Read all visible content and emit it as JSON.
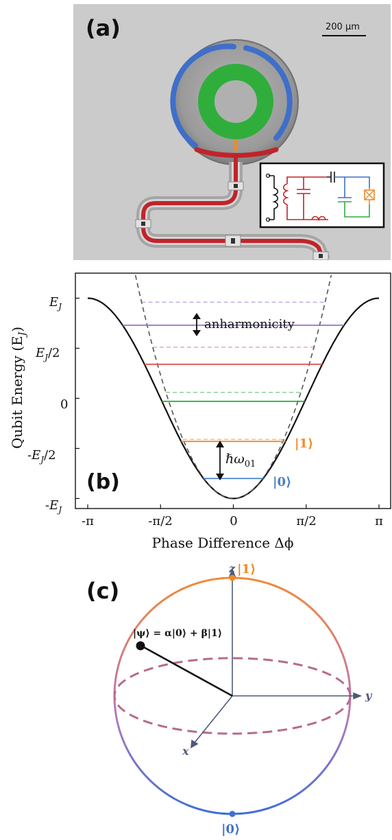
{
  "panel_a": {
    "label": "(a)",
    "scale_bar": "200 µm",
    "colors": {
      "background": "#c9c9c9",
      "red": "#c0242a",
      "blue": "#3f6fc9",
      "green": "#2fae3c",
      "orange": "#f08a24"
    }
  },
  "panel_b": {
    "label": "(b)",
    "ylabel": "Qubit Energy (E",
    "ylabel_sub": "J",
    "ylabel_end": ")",
    "xlabel": "Phase Difference Δϕ",
    "y_ticks": [
      "E",
      "E/2",
      "0",
      "-E/2",
      "-E"
    ],
    "x_ticks": [
      "-π",
      "-π/2",
      "0",
      "π/2",
      "π"
    ],
    "anharmonicity": "anharmonicity",
    "hbar_omega": "ℏω",
    "hbar_sub": "01",
    "state0": "|0⟩",
    "state1": "|1⟩"
  },
  "chart_data": {
    "type": "line",
    "xlabel": "Phase Difference Δϕ",
    "ylabel": "Qubit Energy (E_J)",
    "xlim": [
      -3.1416,
      3.1416
    ],
    "ylim": [
      -1.1,
      1.25
    ],
    "series": [
      {
        "name": "cosine potential",
        "style": "solid black",
        "function": "-cos(x)"
      },
      {
        "name": "harmonic approximation",
        "style": "dashed gray",
        "function": "-1 + x^2/2"
      }
    ],
    "levels": [
      {
        "color": "#4a7fc5",
        "solid": -0.8,
        "dashed": -0.8
      },
      {
        "color": "#f08a24",
        "solid": -0.43,
        "dashed": -0.41
      },
      {
        "color": "#2fae3c",
        "solid": -0.03,
        "dashed": 0.06
      },
      {
        "color": "#e05555",
        "solid": 0.34,
        "dashed": 0.51
      },
      {
        "color": "#9b6fd0",
        "solid": 0.73,
        "dashed": 0.96
      }
    ]
  },
  "panel_c": {
    "label": "(c)",
    "z": "z",
    "y": "y",
    "x": "x",
    "state_top": "|1⟩",
    "state_bottom": "|0⟩",
    "psi_label": "|ψ⟩ = α|0⟩ + β|1⟩"
  }
}
